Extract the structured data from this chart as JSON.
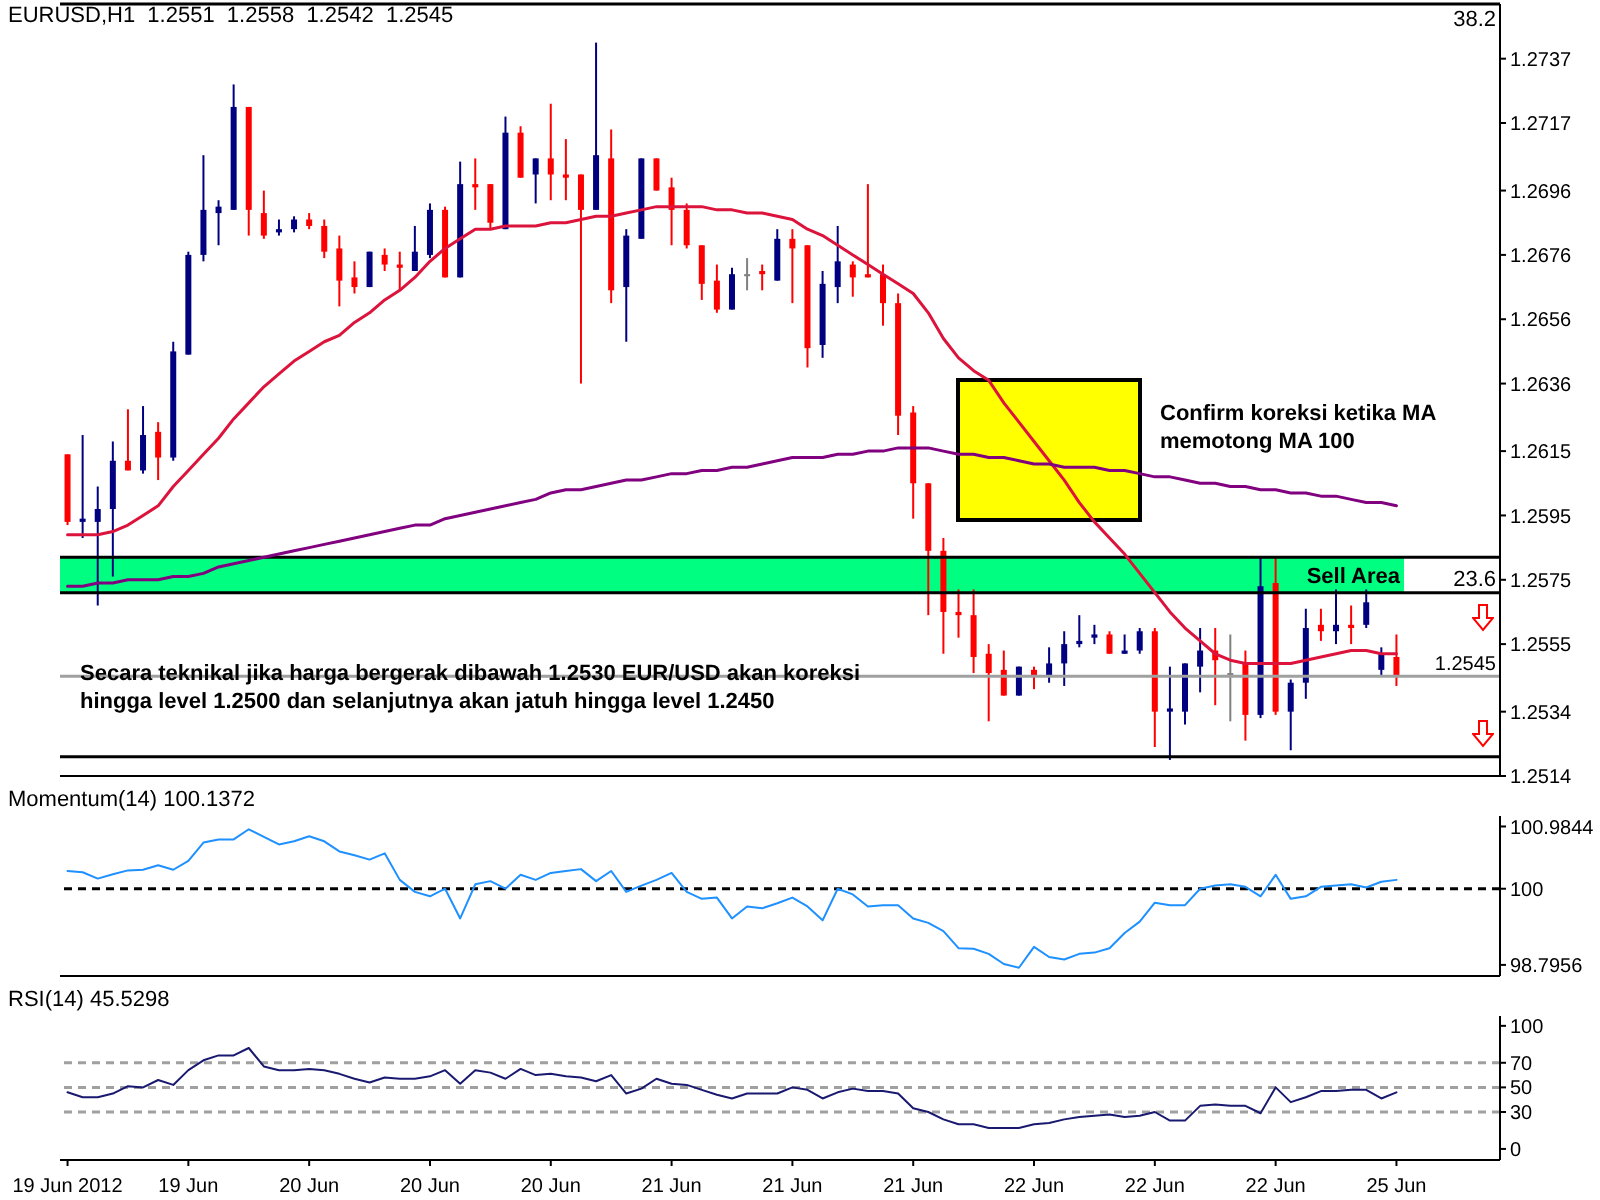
{
  "chart_data": [
    {
      "type": "candlestick",
      "title": "EURUSD,H1  1.2551  1.2558  1.2542  1.2545",
      "categories": [
        null,
        null,
        null,
        null,
        null,
        null,
        null,
        null,
        null,
        null,
        null,
        null,
        null,
        null,
        null,
        null,
        null,
        null,
        null,
        null,
        null,
        null,
        null,
        null,
        null,
        null,
        null,
        null,
        null,
        null,
        null,
        null,
        null,
        null,
        null,
        null,
        null,
        null,
        null,
        null,
        null,
        null,
        null,
        null,
        null,
        null,
        null,
        null,
        null,
        null,
        null,
        null,
        null,
        null,
        null,
        null,
        null,
        null,
        null,
        null,
        null,
        null,
        null,
        null,
        null,
        null,
        null,
        null,
        null,
        null,
        null,
        null,
        null,
        null,
        null,
        null,
        null,
        null,
        null,
        null,
        null,
        null,
        null,
        null,
        null,
        null,
        null,
        null,
        null
      ],
      "ohlc": [
        [
          1.2614,
          1.2614,
          1.2592,
          1.2593
        ],
        [
          1.2593,
          1.262,
          1.2588,
          1.2594
        ],
        [
          1.2593,
          1.2604,
          1.2567,
          1.2597
        ],
        [
          1.2597,
          1.2618,
          1.2576,
          1.2612
        ],
        [
          1.2612,
          1.2628,
          1.2609,
          1.2609
        ],
        [
          1.2609,
          1.2629,
          1.2608,
          1.262
        ],
        [
          1.2621,
          1.2624,
          1.2606,
          1.2613
        ],
        [
          1.2613,
          1.2649,
          1.2612,
          1.2646
        ],
        [
          1.2645,
          1.2677,
          1.2645,
          1.2676
        ],
        [
          1.2676,
          1.2707,
          1.2674,
          1.269
        ],
        [
          1.2689,
          1.2693,
          1.2679,
          1.2691
        ],
        [
          1.269,
          1.2729,
          1.269,
          1.2722
        ],
        [
          1.2722,
          1.2722,
          1.2682,
          1.269
        ],
        [
          1.2689,
          1.2696,
          1.2681,
          1.2682
        ],
        [
          1.2683,
          1.2687,
          1.2682,
          1.2684
        ],
        [
          1.2684,
          1.2688,
          1.2683,
          1.2687
        ],
        [
          1.2687,
          1.2689,
          1.2684,
          1.2685
        ],
        [
          1.2685,
          1.2687,
          1.2675,
          1.2677
        ],
        [
          1.2678,
          1.2682,
          1.266,
          1.2668
        ],
        [
          1.2669,
          1.2674,
          1.2664,
          1.2666
        ],
        [
          1.2666,
          1.2677,
          1.2666,
          1.2677
        ],
        [
          1.2676,
          1.2678,
          1.2671,
          1.2673
        ],
        [
          1.2673,
          1.2677,
          1.2665,
          1.2672
        ],
        [
          1.2671,
          1.2685,
          1.2671,
          1.2677
        ],
        [
          1.2676,
          1.2692,
          1.2675,
          1.269
        ],
        [
          1.269,
          1.2691,
          1.2669,
          1.2669
        ],
        [
          1.2669,
          1.2705,
          1.2669,
          1.2698
        ],
        [
          1.2698,
          1.2706,
          1.269,
          1.2697
        ],
        [
          1.2698,
          1.2698,
          1.2684,
          1.2686
        ],
        [
          1.2684,
          1.2719,
          1.2684,
          1.2714
        ],
        [
          1.2714,
          1.2716,
          1.27,
          1.27
        ],
        [
          1.2701,
          1.2706,
          1.2692,
          1.2706
        ],
        [
          1.2706,
          1.2723,
          1.2693,
          1.2701
        ],
        [
          1.2701,
          1.2712,
          1.2693,
          1.27
        ],
        [
          1.2701,
          1.2701,
          1.2636,
          1.269
        ],
        [
          1.269,
          1.2742,
          1.269,
          1.2707
        ],
        [
          1.2706,
          1.2715,
          1.2661,
          1.2665
        ],
        [
          1.2666,
          1.2684,
          1.2649,
          1.2682
        ],
        [
          1.2681,
          1.2706,
          1.2681,
          1.2706
        ],
        [
          1.2706,
          1.2706,
          1.2696,
          1.2696
        ],
        [
          1.2697,
          1.27,
          1.2679,
          1.269
        ],
        [
          1.269,
          1.2692,
          1.2678,
          1.2679
        ],
        [
          1.2679,
          1.2679,
          1.2662,
          1.2667
        ],
        [
          1.2668,
          1.2673,
          1.2658,
          1.2659
        ],
        [
          1.2659,
          1.2672,
          1.2659,
          1.267
        ],
        [
          1.267,
          1.2675,
          1.2665,
          1.267
        ],
        [
          1.2671,
          1.2673,
          1.2665,
          1.267
        ],
        [
          1.2668,
          1.2684,
          1.2668,
          1.2681
        ],
        [
          1.2681,
          1.2684,
          1.2661,
          1.2678
        ],
        [
          1.2679,
          1.2679,
          1.2641,
          1.2647
        ],
        [
          1.2648,
          1.2671,
          1.2644,
          1.2667
        ],
        [
          1.2666,
          1.2685,
          1.2661,
          1.2674
        ],
        [
          1.2673,
          1.2674,
          1.2663,
          1.2669
        ],
        [
          1.267,
          1.2698,
          1.2669,
          1.2669
        ],
        [
          1.267,
          1.2673,
          1.2654,
          1.2661
        ],
        [
          1.2661,
          1.2664,
          1.262,
          1.2626
        ],
        [
          1.2627,
          1.2629,
          1.2594,
          1.2605
        ],
        [
          1.2605,
          1.2605,
          1.2564,
          1.2584
        ],
        [
          1.2584,
          1.2588,
          1.2552,
          1.2565
        ],
        [
          1.2565,
          1.2572,
          1.2557,
          1.2564
        ],
        [
          1.2564,
          1.2572,
          1.2546,
          1.2551
        ],
        [
          1.2552,
          1.2555,
          1.2531,
          1.2546
        ],
        [
          1.2547,
          1.2553,
          1.2539,
          1.2539
        ],
        [
          1.2539,
          1.2548,
          1.2539,
          1.2548
        ],
        [
          1.2547,
          1.2548,
          1.2541,
          1.2545
        ],
        [
          1.2545,
          1.2554,
          1.2543,
          1.2549
        ],
        [
          1.2549,
          1.2559,
          1.2542,
          1.2555
        ],
        [
          1.2555,
          1.2564,
          1.2554,
          1.2556
        ],
        [
          1.2557,
          1.2561,
          1.2555,
          1.2558
        ],
        [
          1.2558,
          1.2559,
          1.2552,
          1.2552
        ],
        [
          1.2552,
          1.2558,
          1.2552,
          1.2553
        ],
        [
          1.2553,
          1.256,
          1.2552,
          1.2559
        ],
        [
          1.2559,
          1.256,
          1.2523,
          1.2534
        ],
        [
          1.2534,
          1.2548,
          1.2519,
          1.2535
        ],
        [
          1.2534,
          1.2549,
          1.253,
          1.2549
        ],
        [
          1.2548,
          1.256,
          1.254,
          1.2553
        ],
        [
          1.2553,
          1.256,
          1.2536,
          1.255
        ],
        [
          1.2546,
          1.2558,
          1.2531,
          1.2546
        ],
        [
          1.2549,
          1.2553,
          1.2525,
          1.2533
        ],
        [
          1.2533,
          1.2582,
          1.2532,
          1.2573
        ],
        [
          1.2574,
          1.2582,
          1.2533,
          1.2534
        ],
        [
          1.2534,
          1.2544,
          1.2522,
          1.2543
        ],
        [
          1.2543,
          1.2566,
          1.2538,
          1.256
        ],
        [
          1.2561,
          1.2566,
          1.2556,
          1.2559
        ],
        [
          1.2559,
          1.2572,
          1.2555,
          1.2561
        ],
        [
          1.2561,
          1.2567,
          1.2555,
          1.256
        ],
        [
          1.2561,
          1.2572,
          1.256,
          1.2568
        ],
        [
          1.2547,
          1.2554,
          1.2545,
          1.2552
        ],
        [
          1.2551,
          1.2558,
          1.2542,
          1.2545
        ]
      ],
      "colors": [
        "#ff0000",
        "#000080",
        "#000080",
        "#000080",
        "#ff0000",
        "#000080",
        "#ff0000",
        "#000080",
        "#000080",
        "#000080",
        "#000080",
        "#000080",
        "#ff0000",
        "#ff0000",
        "#000080",
        "#000080",
        "#ff0000",
        "#ff0000",
        "#ff0000",
        "#ff0000",
        "#000080",
        "#ff0000",
        "#ff0000",
        "#000080",
        "#000080",
        "#ff0000",
        "#000080",
        "#ff0000",
        "#ff0000",
        "#000080",
        "#ff0000",
        "#000080",
        "#ff0000",
        "#ff0000",
        "#ff0000",
        "#000080",
        "#ff0000",
        "#000080",
        "#000080",
        "#ff0000",
        "#ff0000",
        "#ff0000",
        "#ff0000",
        "#ff0000",
        "#000080",
        "#808080",
        "#ff0000",
        "#000080",
        "#ff0000",
        "#ff0000",
        "#000080",
        "#000080",
        "#ff0000",
        "#ff0000",
        "#ff0000",
        "#ff0000",
        "#ff0000",
        "#ff0000",
        "#ff0000",
        "#ff0000",
        "#ff0000",
        "#ff0000",
        "#ff0000",
        "#000080",
        "#ff0000",
        "#000080",
        "#000080",
        "#000080",
        "#000080",
        "#ff0000",
        "#000080",
        "#000080",
        "#ff0000",
        "#000080",
        "#000080",
        "#000080",
        "#ff0000",
        "#808080",
        "#ff0000",
        "#000080",
        "#ff0000",
        "#000080",
        "#000080",
        "#ff0000",
        "#000080",
        "#ff0000",
        "#000080",
        "#000080",
        "#ff0000"
      ],
      "series": [
        {
          "type": "line",
          "color": "#dc143c",
          "values": [
            1.2589,
            1.2589,
            1.2589,
            1.259,
            1.2592,
            1.2595,
            1.2598,
            1.2604,
            1.2609,
            1.2614,
            1.2619,
            1.2625,
            1.263,
            1.2635,
            1.2639,
            1.2643,
            1.2646,
            1.2649,
            1.2651,
            1.2655,
            1.2658,
            1.2662,
            1.2665,
            1.2669,
            1.2674,
            1.2678,
            1.2681,
            1.2684,
            1.2684,
            1.2685,
            1.2685,
            1.2685,
            1.2686,
            1.2686,
            1.2687,
            1.2688,
            1.2688,
            1.2689,
            1.269,
            1.2691,
            1.2691,
            1.2691,
            1.2691,
            1.269,
            1.269,
            1.2689,
            1.2689,
            1.2688,
            1.2687,
            1.2684,
            1.2682,
            1.2679,
            1.2676,
            1.2673,
            1.267,
            1.2667,
            1.2664,
            1.2658,
            1.265,
            1.2644,
            1.264,
            1.2637,
            1.263,
            1.2624,
            1.2618,
            1.2612,
            1.2606,
            1.2599,
            1.2593,
            1.2588,
            1.2583,
            1.2577,
            1.2571,
            1.2565,
            1.256,
            1.2556,
            1.2552,
            1.255,
            1.2549,
            1.2549,
            1.2549,
            1.2549,
            1.255,
            1.2551,
            1.2552,
            1.2553,
            1.2553,
            1.2552,
            1.2552
          ]
        },
        {
          "type": "line",
          "color": "#800080",
          "values": [
            1.2573,
            1.2573,
            1.2574,
            1.2574,
            1.2575,
            1.2575,
            1.2575,
            1.2576,
            1.2576,
            1.2577,
            1.2579,
            1.258,
            1.2581,
            1.2582,
            1.2583,
            1.2584,
            1.2585,
            1.2586,
            1.2587,
            1.2588,
            1.2589,
            1.259,
            1.2591,
            1.2592,
            1.2592,
            1.2594,
            1.2595,
            1.2596,
            1.2597,
            1.2598,
            1.2599,
            1.26,
            1.2602,
            1.2603,
            1.2603,
            1.2604,
            1.2605,
            1.2606,
            1.2606,
            1.2607,
            1.2608,
            1.2608,
            1.2609,
            1.2609,
            1.261,
            1.261,
            1.2611,
            1.2612,
            1.2613,
            1.2613,
            1.2613,
            1.2614,
            1.2614,
            1.2615,
            1.2615,
            1.2616,
            1.2616,
            1.2616,
            1.2615,
            1.2614,
            1.2614,
            1.2613,
            1.2613,
            1.2612,
            1.2611,
            1.2611,
            1.261,
            1.261,
            1.261,
            1.2609,
            1.2609,
            1.2608,
            1.2607,
            1.2607,
            1.2606,
            1.2605,
            1.2605,
            1.2604,
            1.2604,
            1.2603,
            1.2603,
            1.2602,
            1.2602,
            1.2601,
            1.2601,
            1.26,
            1.2599,
            1.2599,
            1.2598
          ]
        }
      ],
      "ylim": [
        1.2514,
        1.2754
      ],
      "yticks": [
        1.2737,
        1.2717,
        1.2696,
        1.2676,
        1.2656,
        1.2636,
        1.2615,
        1.2595,
        1.2575,
        1.2555,
        1.2534,
        1.2514
      ],
      "bands": [
        {
          "axis": "y",
          "from": 1.2571,
          "to": 1.2582,
          "label": "Sell Area",
          "color": "#00ff80"
        }
      ],
      "ref_lines": [
        {
          "axis": "y",
          "value": 1.2754,
          "color": "#000000"
        },
        {
          "axis": "y",
          "value": 1.2582,
          "color": "#000000"
        },
        {
          "axis": "y",
          "value": 1.2571,
          "color": "#000000"
        },
        {
          "axis": "y",
          "value": 1.2545,
          "label": "1.2545",
          "color": "#a0a0a0"
        },
        {
          "axis": "y",
          "value": 1.252,
          "color": "#000000"
        }
      ],
      "annotations": [
        "38.2",
        "Confirm koreksi ketika MA memotong MA 100",
        "23.6",
        "Secara teknikal jika harga bergerak dibawah 1.2530 EUR/USD akan koreksi hingga level 1.2500 dan selanjutnya akan jatuh hingga level 1.2450"
      ],
      "tick_labels": "y",
      "marker": "none"
    },
    {
      "type": "line",
      "title": "Momentum(14) 100.1372",
      "categories": [
        null,
        null,
        null,
        null,
        null,
        null,
        null,
        null,
        null,
        null,
        null,
        null,
        null,
        null,
        null,
        null,
        null,
        null,
        null,
        null,
        null,
        null,
        null,
        null,
        null,
        null,
        null,
        null,
        null,
        null,
        null,
        null,
        null,
        null,
        null,
        null,
        null,
        null,
        null,
        null,
        null,
        null,
        null,
        null,
        null,
        null,
        null,
        null,
        null,
        null,
        null,
        null,
        null,
        null,
        null,
        null,
        null,
        null,
        null,
        null,
        null,
        null,
        null,
        null,
        null,
        null,
        null,
        null,
        null,
        null,
        null,
        null,
        null,
        null,
        null,
        null,
        null,
        null,
        null,
        null,
        null,
        null,
        null,
        null,
        null,
        null,
        null,
        null,
        null
      ],
      "values": [
        100.28,
        100.26,
        100.16,
        100.23,
        100.29,
        100.3,
        100.37,
        100.3,
        100.44,
        100.73,
        100.78,
        100.78,
        100.94,
        100.82,
        100.7,
        100.75,
        100.83,
        100.75,
        100.59,
        100.53,
        100.46,
        100.56,
        100.14,
        99.95,
        99.88,
        100.0,
        99.53,
        100.07,
        100.12,
        100.0,
        100.22,
        100.14,
        100.25,
        100.28,
        100.31,
        100.12,
        100.28,
        99.95,
        100.05,
        100.14,
        100.25,
        99.95,
        99.84,
        99.86,
        99.53,
        99.72,
        99.69,
        99.77,
        99.86,
        99.72,
        99.5,
        100.0,
        99.91,
        99.72,
        99.74,
        99.74,
        99.53,
        99.46,
        99.33,
        99.06,
        99.05,
        98.97,
        98.81,
        98.75,
        99.08,
        98.92,
        98.88,
        98.97,
        98.99,
        99.06,
        99.3,
        99.48,
        99.78,
        99.74,
        99.74,
        100.0,
        100.05,
        100.07,
        100.03,
        99.88,
        100.22,
        99.84,
        99.88,
        100.03,
        100.05,
        100.07,
        100.02,
        100.11,
        100.14
      ],
      "color": "#1e90ff",
      "ylim": [
        98.62,
        101.15
      ],
      "yticks": [
        100.9844,
        100,
        98.7956
      ],
      "ref_lines": [
        {
          "axis": "y",
          "value": 100,
          "color": "#000000",
          "line_style": "dashed"
        }
      ],
      "tick_labels": "y",
      "marker": "none"
    },
    {
      "type": "line",
      "title": "RSI(14) 45.5298",
      "categories": [
        "19 Jun 2012",
        null,
        null,
        null,
        null,
        null,
        null,
        null,
        "19 Jun",
        null,
        null,
        null,
        null,
        null,
        null,
        null,
        "20 Jun",
        null,
        null,
        null,
        null,
        null,
        null,
        null,
        "20 Jun",
        null,
        null,
        null,
        null,
        null,
        null,
        null,
        "20 Jun",
        null,
        null,
        null,
        null,
        null,
        null,
        null,
        "21 Jun",
        null,
        null,
        null,
        null,
        null,
        null,
        null,
        "21 Jun",
        null,
        null,
        null,
        null,
        null,
        null,
        null,
        "21 Jun",
        null,
        null,
        null,
        null,
        null,
        null,
        null,
        "22 Jun",
        null,
        null,
        null,
        null,
        null,
        null,
        null,
        "22 Jun",
        null,
        null,
        null,
        null,
        null,
        null,
        null,
        "22 Jun",
        null,
        null,
        null,
        null,
        null,
        null,
        null,
        "25 Jun"
      ],
      "values": [
        46,
        42,
        42,
        45,
        51,
        50,
        56,
        52,
        64,
        72,
        76,
        76,
        82,
        67,
        64,
        64,
        65,
        64,
        61,
        57,
        54,
        58,
        57,
        57,
        59,
        64,
        53,
        64,
        62,
        57,
        65,
        60,
        61,
        59,
        58,
        55,
        60,
        45,
        49,
        57,
        53,
        52,
        48,
        44,
        41,
        45,
        45,
        45,
        50,
        48,
        41,
        46,
        49,
        47,
        47,
        45,
        33,
        30,
        24,
        20,
        20,
        17,
        17,
        17,
        20,
        21,
        24,
        26,
        27,
        28,
        26,
        27,
        30,
        23,
        23,
        35,
        36,
        35,
        35,
        29,
        50,
        38,
        42,
        47,
        47,
        48,
        48,
        41,
        46
      ],
      "color": "#191970",
      "ylim": [
        -9,
        108
      ],
      "yticks": [
        100,
        70,
        50,
        30,
        0
      ],
      "ref_lines": [
        {
          "axis": "y",
          "value": 70,
          "color": "#a0a0a0",
          "line_style": "dashed"
        },
        {
          "axis": "y",
          "value": 50,
          "color": "#a0a0a0",
          "line_style": "dashed"
        },
        {
          "axis": "y",
          "value": 30,
          "color": "#a0a0a0",
          "line_style": "dashed"
        }
      ],
      "marker": "none"
    }
  ]
}
